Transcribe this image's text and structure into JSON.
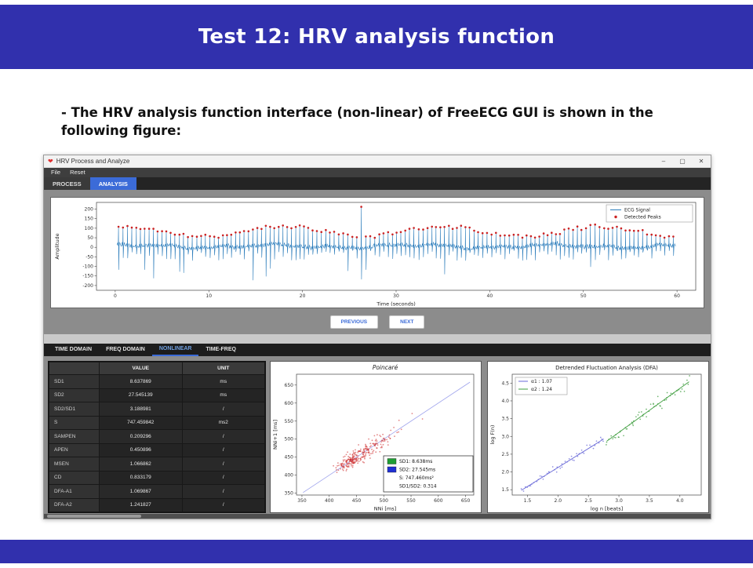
{
  "slide": {
    "title": "Test 12: HRV analysis function",
    "body_line": "- The HRV analysis function interface (non-linear) of FreeECG GUI is shown in the following figure:"
  },
  "colors": {
    "banner": "#3130ad",
    "active_tab": "#3b6bd8"
  },
  "window": {
    "title": "HRV Process and Analyze",
    "controls": {
      "minimize": "–",
      "maximize": "▢",
      "close": "✕"
    },
    "menu_items": [
      "File",
      "Reset"
    ],
    "main_tabs": [
      {
        "label": "PROCESS",
        "active": false
      },
      {
        "label": "ANALYSIS",
        "active": true
      }
    ],
    "nav_buttons": [
      {
        "label": "PREVIOUS"
      },
      {
        "label": "NEXT"
      }
    ],
    "analysis_tabs": [
      {
        "label": "TIME DOMAIN",
        "active": false
      },
      {
        "label": "FREQ DOMAIN",
        "active": false
      },
      {
        "label": "NONLINEAR",
        "active": true
      },
      {
        "label": "TIME-FREQ",
        "active": false
      }
    ]
  },
  "metrics_table": {
    "columns": [
      "VALUE",
      "UNIT"
    ],
    "rows": [
      [
        "SD1",
        "8.637869",
        "ms"
      ],
      [
        "SD2",
        "27.545139",
        "ms"
      ],
      [
        "SD2/SD1",
        "3.188981",
        "/"
      ],
      [
        "S",
        "747.459842",
        "ms2"
      ],
      [
        "SAMPEN",
        "0.209296",
        "/"
      ],
      [
        "APEN",
        "0.450896",
        "/"
      ],
      [
        "MSEN",
        "1.066862",
        "/"
      ],
      [
        "CD",
        "0.833179",
        "/"
      ],
      [
        "DFA-A1",
        "1.069867",
        "/"
      ],
      [
        "DFA-A2",
        "1.241827",
        "/"
      ]
    ]
  },
  "chart_data": [
    {
      "id": "ecg",
      "type": "line",
      "title": "",
      "xlabel": "Time (seconds)",
      "ylabel": "Amplitude",
      "xlim": [
        -2,
        62
      ],
      "ylim": [
        -225,
        235
      ],
      "xticks": [
        0,
        10,
        20,
        30,
        40,
        50,
        60
      ],
      "yticks": [
        -200,
        -150,
        -100,
        -50,
        0,
        50,
        100,
        150,
        200
      ],
      "legend": [
        {
          "label": "ECG Signal",
          "marker": "line",
          "color": "#2e7ebc"
        },
        {
          "label": "Detected Peaks",
          "marker": "dot",
          "color": "#cc2222"
        }
      ],
      "signal": {
        "duration_s": 60,
        "mean_rr_s": 0.46,
        "rr_jitter_s": 0.022,
        "peak_amp_range": [
          45,
          120
        ],
        "big_spike": {
          "time_s": 26.2,
          "amp": 212,
          "trough": -168
        },
        "deep_dip_time_s": 4.1,
        "deep_dip_amp": -162
      }
    },
    {
      "id": "poincare",
      "type": "scatter",
      "title": "Poincaré",
      "xlabel": "NNi [ms]",
      "ylabel": "NNi+1 [ms]",
      "xlim": [
        340,
        665
      ],
      "ylim": [
        345,
        680
      ],
      "xticks": [
        350,
        400,
        450,
        500,
        550,
        600,
        650
      ],
      "yticks": [
        350,
        400,
        450,
        500,
        550,
        600,
        650
      ],
      "point_color": "#cc2222",
      "identity_line_color": "#9398ea",
      "cluster": {
        "mean_ms": 455,
        "ar_coeff": 0.915,
        "noise_ms": 11.5,
        "n": 260
      },
      "outliers": [
        [
          528,
          552
        ],
        [
          552,
          571
        ],
        [
          571,
          556
        ]
      ],
      "stats_legend": [
        {
          "swatch": "#1f9e34",
          "text": "SD1: 8.638ms"
        },
        {
          "swatch": "#1f2fd4",
          "text": "SD2: 27.545ms"
        },
        {
          "swatch": null,
          "text": "S: 747.460ms²"
        },
        {
          "swatch": null,
          "text": "SD1/SD2: 0.314"
        }
      ]
    },
    {
      "id": "dfa",
      "type": "scatter",
      "title": "Detrended Fluctuation Analysis (DFA)",
      "xlabel": "log n [beats]",
      "ylabel": "log F(n)",
      "xlim": [
        1.25,
        4.35
      ],
      "ylim": [
        1.35,
        4.75
      ],
      "xticks": [
        1.5,
        2.0,
        2.5,
        3.0,
        3.5,
        4.0
      ],
      "yticks": [
        1.5,
        2.0,
        2.5,
        3.0,
        3.5,
        4.0,
        4.5
      ],
      "series": [
        {
          "name": "α1 : 1.07",
          "color": "#6a6ad8",
          "slope": 1.07,
          "x_range": [
            1.4,
            2.75
          ],
          "anchor": [
            2.07,
            2.2
          ],
          "spread": 0.045,
          "n": 46
        },
        {
          "name": "α2 : 1.24",
          "color": "#3f9e3f",
          "slope": 1.24,
          "x_range": [
            2.8,
            4.15
          ],
          "anchor": [
            3.45,
            3.67
          ],
          "spread": 0.1,
          "n": 60
        }
      ]
    }
  ]
}
